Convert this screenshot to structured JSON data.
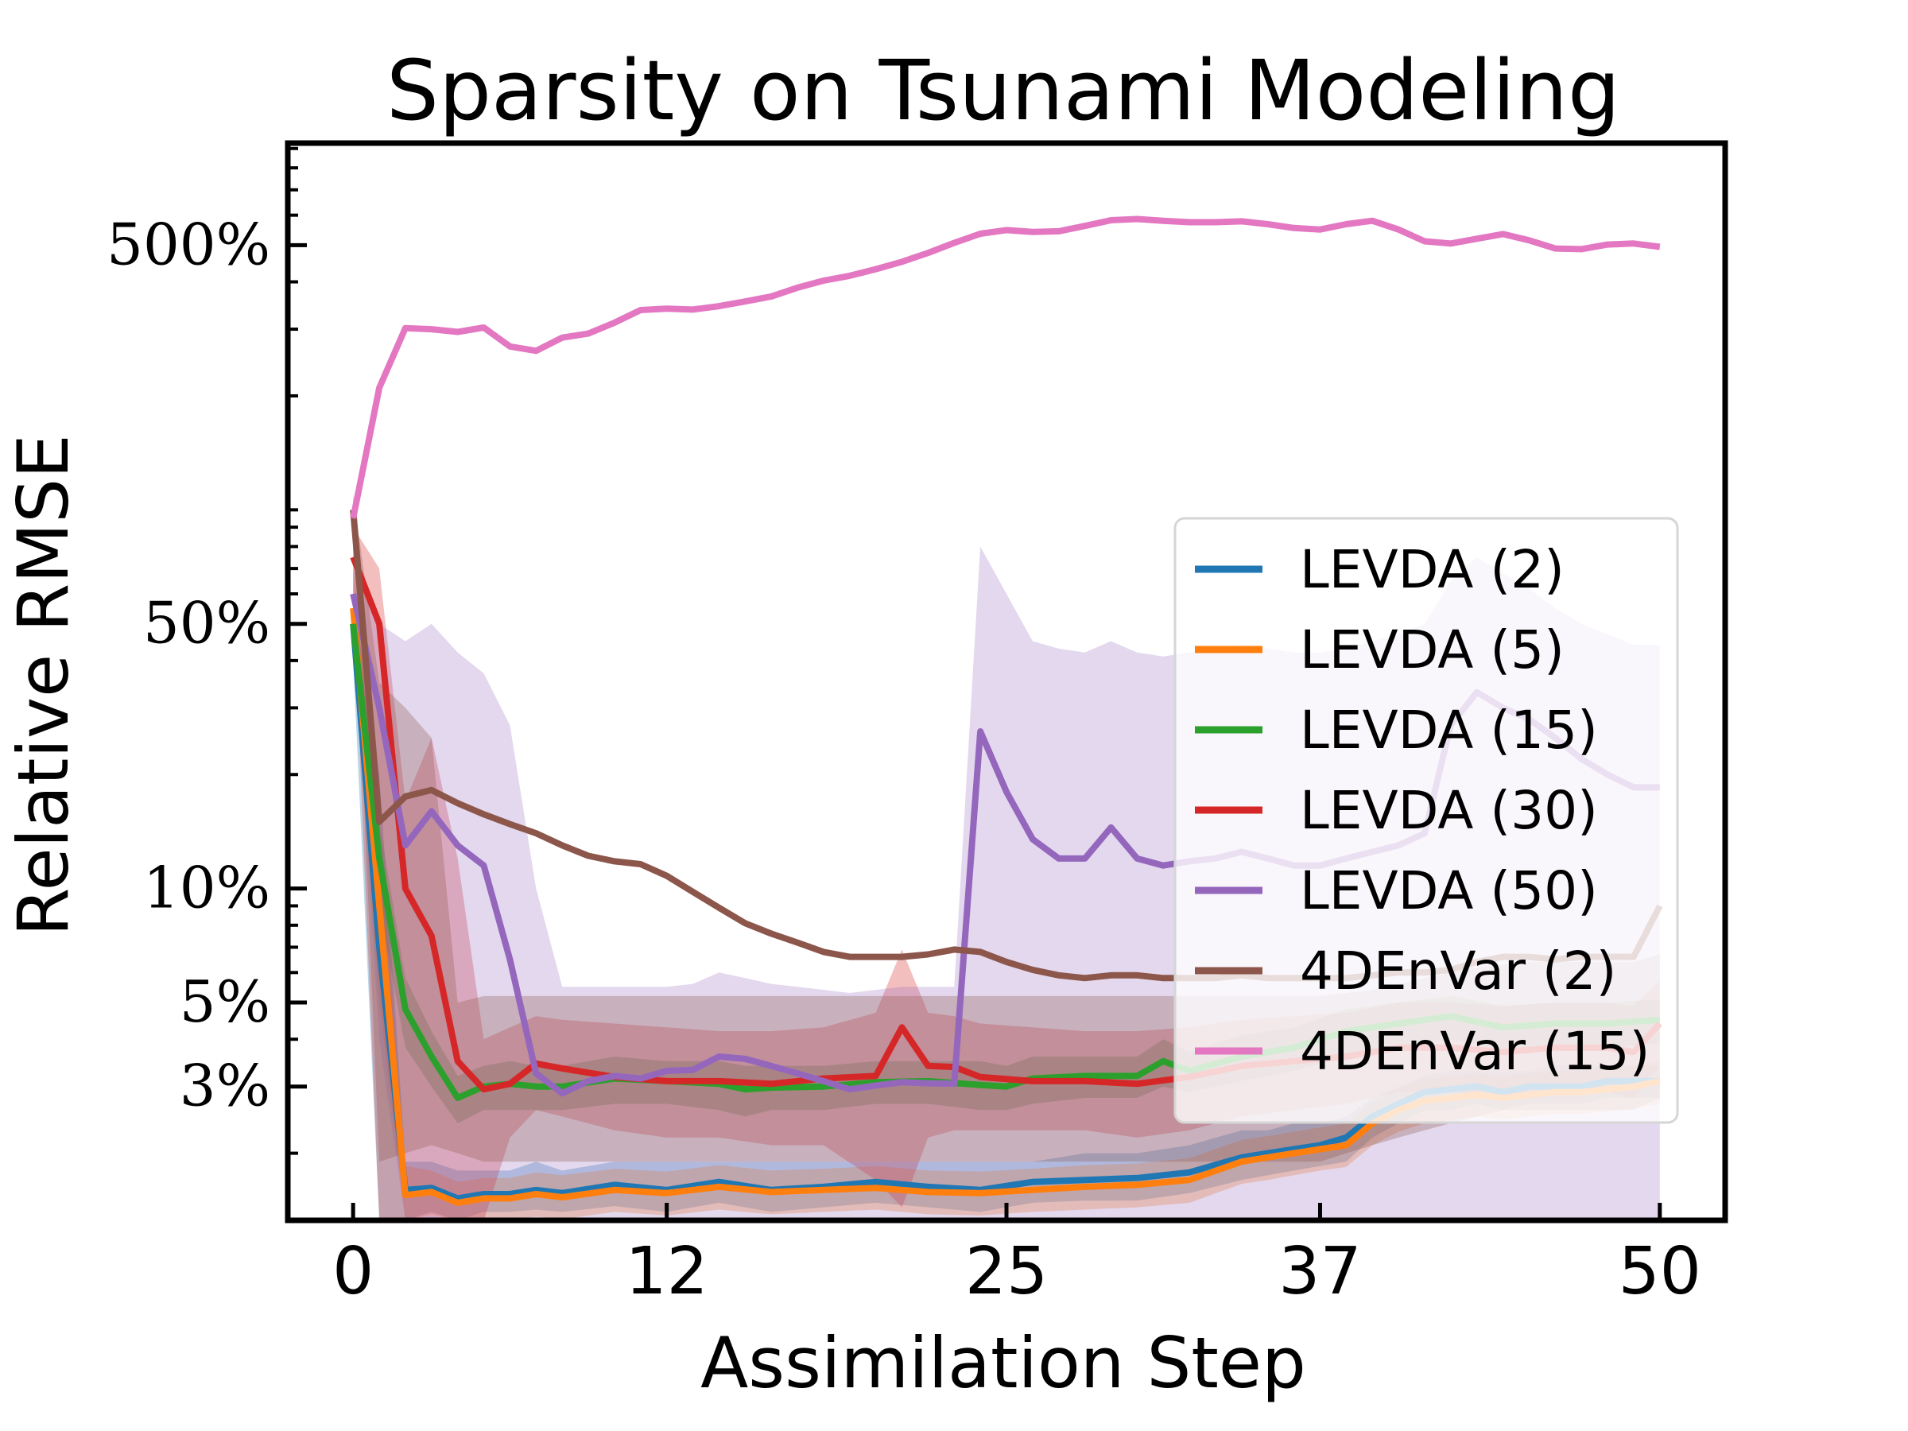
{
  "chart_data": {
    "type": "line",
    "title": "Sparsity on Tsunami Modeling",
    "xlabel": "Assimilation Step",
    "ylabel": "Relative RMSE",
    "y_scale": "log",
    "xlim": [
      -2.5,
      52.5
    ],
    "ylim": [
      0.0133,
      9.3
    ],
    "x_ticks": [
      0,
      12,
      25,
      37,
      50
    ],
    "x_tick_labels": [
      "0",
      "12",
      "25",
      "37",
      "50"
    ],
    "y_ticks": [
      0.03,
      0.05,
      0.1,
      0.5,
      5
    ],
    "y_tick_labels": [
      "3%",
      "5%",
      "10%",
      "50%",
      "500%"
    ],
    "grid": false,
    "legend_position": "right",
    "series": [
      {
        "name": "LEVDA (2)",
        "color": "#1f77b4",
        "x": [
          0,
          1,
          2,
          3,
          4,
          5,
          6,
          7,
          8,
          10,
          12,
          14,
          16,
          18,
          20,
          22,
          24,
          26,
          28,
          30,
          32,
          34,
          35,
          36,
          37,
          38,
          39,
          40,
          41,
          42,
          43,
          44,
          45,
          46,
          47,
          48,
          49,
          50
        ],
        "values": [
          0.5,
          0.07,
          0.016,
          0.0162,
          0.0152,
          0.0156,
          0.0156,
          0.016,
          0.0157,
          0.0165,
          0.016,
          0.0168,
          0.016,
          0.0163,
          0.0168,
          0.0163,
          0.016,
          0.0168,
          0.017,
          0.0172,
          0.0178,
          0.0195,
          0.02,
          0.0205,
          0.021,
          0.022,
          0.025,
          0.027,
          0.029,
          0.0295,
          0.03,
          0.029,
          0.03,
          0.03,
          0.03,
          0.031,
          0.031,
          0.031
        ],
        "band_lower": [
          0.4,
          0.006,
          0.012,
          0.014,
          0.013,
          0.014,
          0.014,
          0.0142,
          0.014,
          0.0145,
          0.014,
          0.0148,
          0.014,
          0.0144,
          0.0148,
          0.0144,
          0.014,
          0.0148,
          0.015,
          0.015,
          0.0157,
          0.017,
          0.0175,
          0.018,
          0.0185,
          0.019,
          0.022,
          0.024,
          0.026,
          0.026,
          0.027,
          0.026,
          0.027,
          0.027,
          0.027,
          0.028,
          0.028,
          0.028
        ],
        "band_upper": [
          0.6,
          0.2,
          0.019,
          0.019,
          0.018,
          0.018,
          0.018,
          0.019,
          0.018,
          0.019,
          0.019,
          0.019,
          0.019,
          0.019,
          0.019,
          0.019,
          0.019,
          0.019,
          0.02,
          0.02,
          0.021,
          0.023,
          0.023,
          0.024,
          0.024,
          0.025,
          0.028,
          0.03,
          0.032,
          0.033,
          0.033,
          0.033,
          0.033,
          0.034,
          0.034,
          0.034,
          0.034,
          0.034
        ]
      },
      {
        "name": "LEVDA (5)",
        "color": "#ff7f0e",
        "x": [
          0,
          1,
          2,
          3,
          4,
          5,
          6,
          7,
          8,
          10,
          12,
          14,
          16,
          18,
          20,
          22,
          24,
          26,
          28,
          30,
          32,
          34,
          35,
          36,
          37,
          38,
          39,
          40,
          41,
          42,
          43,
          44,
          45,
          46,
          47,
          48,
          49,
          50
        ],
        "values": [
          0.55,
          0.09,
          0.0155,
          0.0158,
          0.0148,
          0.0152,
          0.0152,
          0.0156,
          0.0153,
          0.016,
          0.0157,
          0.0163,
          0.0158,
          0.016,
          0.0162,
          0.0158,
          0.0157,
          0.016,
          0.0163,
          0.0165,
          0.017,
          0.019,
          0.0195,
          0.02,
          0.0205,
          0.021,
          0.024,
          0.026,
          0.0275,
          0.028,
          0.0285,
          0.028,
          0.0285,
          0.029,
          0.029,
          0.0295,
          0.03,
          0.031
        ],
        "band_lower": [
          0.45,
          0.05,
          0.013,
          0.0138,
          0.013,
          0.0133,
          0.0133,
          0.0136,
          0.0134,
          0.014,
          0.0137,
          0.0142,
          0.0138,
          0.014,
          0.0142,
          0.0138,
          0.0137,
          0.014,
          0.0142,
          0.0144,
          0.0148,
          0.0166,
          0.017,
          0.0175,
          0.018,
          0.0184,
          0.021,
          0.0228,
          0.024,
          0.0245,
          0.025,
          0.0245,
          0.025,
          0.0254,
          0.0254,
          0.0258,
          0.0263,
          0.027
        ],
        "band_upper": [
          0.7,
          0.15,
          0.0185,
          0.018,
          0.0168,
          0.0172,
          0.0172,
          0.0178,
          0.0175,
          0.0182,
          0.0179,
          0.0186,
          0.018,
          0.0182,
          0.0185,
          0.018,
          0.0179,
          0.0182,
          0.0186,
          0.0188,
          0.0194,
          0.0217,
          0.0222,
          0.0228,
          0.0234,
          0.024,
          0.0274,
          0.0296,
          0.0314,
          0.032,
          0.0325,
          0.032,
          0.0325,
          0.033,
          0.033,
          0.0336,
          0.0342,
          0.0353
        ]
      },
      {
        "name": "LEVDA (15)",
        "color": "#2ca02c",
        "x": [
          0,
          1,
          2,
          3,
          4,
          5,
          6,
          7,
          8,
          10,
          12,
          14,
          15,
          16,
          18,
          20,
          22,
          24,
          25,
          26,
          28,
          30,
          31,
          32,
          34,
          36,
          38,
          40,
          42,
          44,
          46,
          48,
          50
        ],
        "values": [
          0.5,
          0.12,
          0.048,
          0.036,
          0.028,
          0.03,
          0.0305,
          0.03,
          0.03,
          0.0315,
          0.031,
          0.0305,
          0.0295,
          0.0298,
          0.03,
          0.0308,
          0.031,
          0.0303,
          0.03,
          0.0315,
          0.032,
          0.032,
          0.035,
          0.033,
          0.036,
          0.038,
          0.042,
          0.044,
          0.046,
          0.043,
          0.044,
          0.044,
          0.045
        ],
        "band_lower": [
          0.4,
          0.09,
          0.038,
          0.03,
          0.024,
          0.026,
          0.026,
          0.026,
          0.026,
          0.027,
          0.027,
          0.026,
          0.025,
          0.026,
          0.026,
          0.027,
          0.027,
          0.026,
          0.026,
          0.027,
          0.028,
          0.028,
          0.03,
          0.029,
          0.031,
          0.033,
          0.036,
          0.038,
          0.04,
          0.037,
          0.038,
          0.038,
          0.039
        ],
        "band_upper": [
          0.6,
          0.15,
          0.058,
          0.042,
          0.032,
          0.034,
          0.035,
          0.034,
          0.034,
          0.036,
          0.035,
          0.035,
          0.034,
          0.034,
          0.034,
          0.035,
          0.035,
          0.035,
          0.034,
          0.036,
          0.036,
          0.036,
          0.04,
          0.037,
          0.041,
          0.043,
          0.048,
          0.05,
          0.052,
          0.049,
          0.05,
          0.05,
          0.051
        ]
      },
      {
        "name": "LEVDA (30)",
        "color": "#d62728",
        "x": [
          0,
          1,
          2,
          3,
          4,
          5,
          6,
          7,
          8,
          10,
          12,
          14,
          16,
          18,
          20,
          21,
          22,
          23,
          24,
          26,
          28,
          30,
          32,
          34,
          36,
          38,
          40,
          42,
          44,
          46,
          48,
          49,
          50
        ],
        "values": [
          0.75,
          0.5,
          0.1,
          0.075,
          0.035,
          0.0295,
          0.0305,
          0.0345,
          0.0335,
          0.0318,
          0.031,
          0.031,
          0.0305,
          0.0315,
          0.032,
          0.043,
          0.034,
          0.0338,
          0.0318,
          0.031,
          0.031,
          0.0305,
          0.0318,
          0.034,
          0.035,
          0.036,
          0.038,
          0.038,
          0.037,
          0.038,
          0.038,
          0.037,
          0.044
        ],
        "band_lower": [
          0.6,
          0.0133,
          0.0133,
          0.0133,
          0.0133,
          0.0133,
          0.022,
          0.026,
          0.025,
          0.023,
          0.022,
          0.022,
          0.021,
          0.021,
          0.017,
          0.0144,
          0.022,
          0.023,
          0.023,
          0.023,
          0.023,
          0.022,
          0.023,
          0.025,
          0.026,
          0.027,
          0.029,
          0.029,
          0.028,
          0.029,
          0.029,
          0.028,
          0.034
        ],
        "band_upper": [
          0.9,
          0.7,
          0.17,
          0.25,
          0.12,
          0.04,
          0.043,
          0.046,
          0.045,
          0.044,
          0.043,
          0.042,
          0.042,
          0.043,
          0.047,
          0.069,
          0.047,
          0.046,
          0.044,
          0.043,
          0.042,
          0.042,
          0.043,
          0.045,
          0.046,
          0.047,
          0.05,
          0.05,
          0.049,
          0.05,
          0.05,
          0.049,
          0.057
        ]
      },
      {
        "name": "LEVDA (50)",
        "color": "#9467bd",
        "x": [
          0,
          1,
          2,
          3,
          4,
          5,
          6,
          7,
          8,
          9,
          10,
          11,
          12,
          13,
          14,
          15,
          16,
          17,
          18,
          19,
          20,
          21,
          22,
          23,
          24,
          25,
          26,
          27,
          28,
          29,
          30,
          31,
          32,
          33,
          34,
          35,
          36,
          37,
          38,
          39,
          40,
          41,
          42,
          43,
          44,
          45,
          46,
          47,
          48,
          49,
          50
        ],
        "values": [
          0.6,
          0.3,
          0.13,
          0.16,
          0.13,
          0.115,
          0.065,
          0.0325,
          0.0288,
          0.031,
          0.032,
          0.0315,
          0.033,
          0.0332,
          0.036,
          0.0355,
          0.034,
          0.0325,
          0.031,
          0.0295,
          0.0302,
          0.0308,
          0.0306,
          0.0305,
          0.26,
          0.18,
          0.135,
          0.12,
          0.12,
          0.145,
          0.12,
          0.115,
          0.118,
          0.12,
          0.125,
          0.12,
          0.115,
          0.115,
          0.12,
          0.125,
          0.13,
          0.14,
          0.27,
          0.33,
          0.3,
          0.28,
          0.25,
          0.22,
          0.2,
          0.185,
          0.185
        ],
        "band_lower": [
          0.5,
          0.04,
          0.0133,
          0.0133,
          0.0133,
          0.0133,
          0.0133,
          0.0133,
          0.0133,
          0.0133,
          0.0133,
          0.0133,
          0.0133,
          0.0133,
          0.0133,
          0.0133,
          0.0133,
          0.0133,
          0.0133,
          0.0133,
          0.0133,
          0.0133,
          0.0133,
          0.0133,
          0.0133,
          0.0133,
          0.0133,
          0.0133,
          0.0133,
          0.0133,
          0.0133,
          0.0133,
          0.0133,
          0.0133,
          0.0133,
          0.0133,
          0.0133,
          0.0133,
          0.0133,
          0.0133,
          0.0133,
          0.0133,
          0.0133,
          0.0133,
          0.0133,
          0.0133,
          0.0133,
          0.0133,
          0.0133,
          0.0133,
          0.0133
        ],
        "band_upper": [
          0.7,
          0.5,
          0.45,
          0.5,
          0.42,
          0.37,
          0.27,
          0.1,
          0.055,
          0.055,
          0.055,
          0.055,
          0.055,
          0.056,
          0.06,
          0.058,
          0.056,
          0.055,
          0.054,
          0.053,
          0.054,
          0.055,
          0.055,
          0.055,
          0.8,
          0.6,
          0.45,
          0.43,
          0.42,
          0.45,
          0.42,
          0.41,
          0.42,
          0.43,
          0.44,
          0.43,
          0.42,
          0.42,
          0.43,
          0.45,
          0.47,
          0.5,
          0.65,
          0.75,
          0.68,
          0.62,
          0.55,
          0.5,
          0.47,
          0.44,
          0.44
        ]
      },
      {
        "name": "4DEnVar (2)",
        "color": "#8c564b",
        "x": [
          0,
          1,
          2,
          3,
          4,
          5,
          6,
          7,
          8,
          9,
          10,
          11,
          12,
          13,
          14,
          15,
          16,
          17,
          18,
          19,
          20,
          21,
          22,
          23,
          24,
          25,
          26,
          27,
          28,
          29,
          30,
          31,
          32,
          33,
          34,
          35,
          36,
          37,
          38,
          39,
          40,
          41,
          42,
          43,
          44,
          45,
          46,
          47,
          48,
          49,
          50
        ],
        "values": [
          1.0,
          0.15,
          0.175,
          0.182,
          0.168,
          0.157,
          0.148,
          0.14,
          0.13,
          0.122,
          0.118,
          0.116,
          0.108,
          0.098,
          0.089,
          0.081,
          0.076,
          0.072,
          0.068,
          0.066,
          0.066,
          0.066,
          0.067,
          0.069,
          0.068,
          0.064,
          0.061,
          0.059,
          0.058,
          0.059,
          0.059,
          0.058,
          0.058,
          0.058,
          0.059,
          0.058,
          0.058,
          0.058,
          0.058,
          0.059,
          0.06,
          0.06,
          0.061,
          0.064,
          0.066,
          0.066,
          0.065,
          0.066,
          0.066,
          0.066,
          0.09
        ],
        "band_lower": [
          0.8,
          0.019,
          0.02,
          0.021,
          0.02,
          0.019,
          0.019,
          0.019,
          0.019,
          0.019,
          0.019,
          0.019,
          0.019,
          0.019,
          0.019,
          0.019,
          0.019,
          0.019,
          0.019,
          0.019,
          0.019,
          0.019,
          0.019,
          0.019,
          0.019,
          0.019,
          0.019,
          0.019,
          0.019,
          0.019,
          0.019,
          0.019,
          0.019,
          0.019,
          0.019,
          0.019,
          0.019,
          0.019,
          0.02,
          0.021,
          0.022,
          0.023,
          0.024,
          0.025,
          0.026,
          0.026,
          0.026,
          0.026,
          0.026,
          0.026,
          0.028
        ],
        "band_upper": [
          1.1,
          0.35,
          0.3,
          0.25,
          0.05,
          0.052,
          0.052,
          0.052,
          0.052,
          0.052,
          0.052,
          0.052,
          0.052,
          0.052,
          0.052,
          0.052,
          0.052,
          0.052,
          0.052,
          0.052,
          0.052,
          0.052,
          0.052,
          0.052,
          0.052,
          0.052,
          0.052,
          0.052,
          0.052,
          0.052,
          0.052,
          0.052,
          0.052,
          0.052,
          0.052,
          0.052,
          0.052,
          0.052,
          0.053,
          0.054,
          0.056,
          0.058,
          0.06,
          0.062,
          0.063,
          0.064,
          0.064,
          0.064,
          0.064,
          0.064,
          0.067
        ]
      },
      {
        "name": "4DEnVar (15)",
        "color": "#e377c2",
        "x": [
          0,
          1,
          2,
          3,
          4,
          5,
          6,
          7,
          8,
          9,
          10,
          11,
          12,
          13,
          14,
          15,
          16,
          17,
          18,
          19,
          20,
          21,
          22,
          23,
          24,
          25,
          26,
          27,
          28,
          29,
          30,
          31,
          32,
          33,
          34,
          35,
          36,
          37,
          38,
          39,
          40,
          41,
          42,
          43,
          44,
          45,
          46,
          47,
          48,
          49,
          50
        ],
        "values": [
          0.95,
          2.1,
          3.02,
          3.0,
          2.95,
          3.03,
          2.7,
          2.63,
          2.85,
          2.92,
          3.12,
          3.37,
          3.4,
          3.38,
          3.45,
          3.55,
          3.66,
          3.86,
          4.03,
          4.15,
          4.32,
          4.52,
          4.77,
          5.07,
          5.36,
          5.48,
          5.42,
          5.44,
          5.62,
          5.82,
          5.86,
          5.8,
          5.75,
          5.75,
          5.78,
          5.68,
          5.55,
          5.5,
          5.68,
          5.8,
          5.5,
          5.12,
          5.05,
          5.2,
          5.35,
          5.15,
          4.9,
          4.88,
          5.02,
          5.05,
          4.95
        ]
      }
    ]
  }
}
